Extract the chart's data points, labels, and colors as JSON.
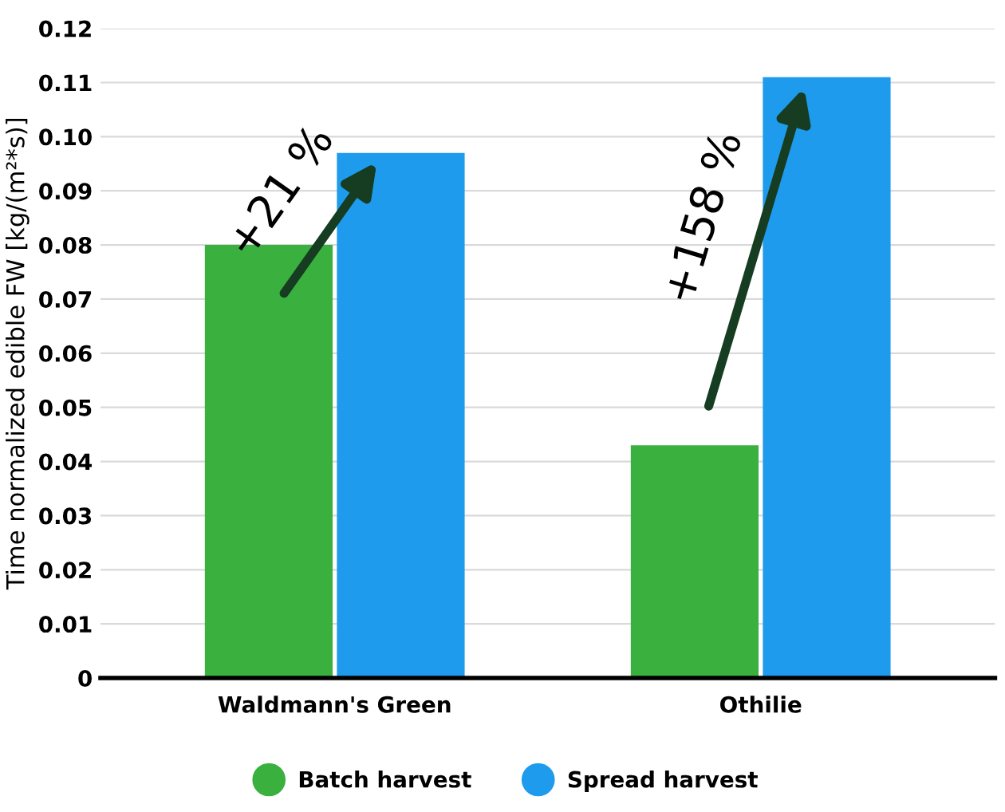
{
  "chart_data": {
    "type": "bar",
    "ylabel": "Time normalized edible FW [kg/(m²*s)]",
    "categories": [
      "Waldmann's Green",
      "Othilie"
    ],
    "series": [
      {
        "name": "Batch harvest",
        "color": "#3ab03e",
        "values": [
          0.08,
          0.043
        ]
      },
      {
        "name": "Spread harvest",
        "color": "#1e9bec",
        "values": [
          0.097,
          0.111
        ]
      }
    ],
    "annotations": [
      "+21 %",
      "+158 %"
    ],
    "ylim": [
      0,
      0.12
    ],
    "yticks": [
      {
        "value": 0,
        "label": "0"
      },
      0.01,
      0.02,
      0.03,
      0.04,
      0.05,
      0.06,
      0.07,
      0.08,
      0.09,
      {
        "value": 0.1,
        "label": "0.10"
      },
      0.11,
      0.12
    ],
    "grid": "y",
    "legend": "bottom"
  }
}
